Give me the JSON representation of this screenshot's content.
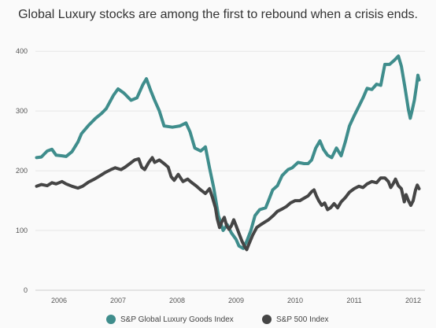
{
  "title": "Global Luxury stocks are among the first to rebound when a crisis ends.",
  "chart_data": {
    "type": "line",
    "title": "Global Luxury stocks are among the first to rebound when a crisis ends.",
    "xlabel": "",
    "ylabel": "",
    "xlim": [
      2005.6,
      2012.2
    ],
    "ylim": [
      0,
      420
    ],
    "yticks": [
      0,
      100,
      200,
      300,
      400
    ],
    "xticks": [
      {
        "value": 2006,
        "label": "2006"
      },
      {
        "value": 2007,
        "label": "2007"
      },
      {
        "value": 2008,
        "label": "2008"
      },
      {
        "value": 2009,
        "label": "2009"
      },
      {
        "value": 2010,
        "label": "2010"
      },
      {
        "value": 2011,
        "label": "2011"
      },
      {
        "value": 2012,
        "label": "2012"
      }
    ],
    "grid": "horizontal",
    "legend_position": "bottom",
    "series": [
      {
        "name": "S&P Global Luxury Goods Index",
        "color": "#3f8d8c",
        "points": [
          [
            2005.62,
            222
          ],
          [
            2005.7,
            223
          ],
          [
            2005.8,
            233
          ],
          [
            2005.88,
            236
          ],
          [
            2005.95,
            226
          ],
          [
            2006.05,
            225
          ],
          [
            2006.12,
            224
          ],
          [
            2006.22,
            232
          ],
          [
            2006.32,
            248
          ],
          [
            2006.38,
            262
          ],
          [
            2006.5,
            276
          ],
          [
            2006.62,
            288
          ],
          [
            2006.72,
            296
          ],
          [
            2006.8,
            304
          ],
          [
            2006.92,
            326
          ],
          [
            2007.0,
            337
          ],
          [
            2007.1,
            330
          ],
          [
            2007.22,
            318
          ],
          [
            2007.32,
            322
          ],
          [
            2007.42,
            344
          ],
          [
            2007.48,
            354
          ],
          [
            2007.55,
            335
          ],
          [
            2007.62,
            318
          ],
          [
            2007.7,
            300
          ],
          [
            2007.78,
            275
          ],
          [
            2007.92,
            273
          ],
          [
            2008.05,
            275
          ],
          [
            2008.15,
            280
          ],
          [
            2008.22,
            265
          ],
          [
            2008.3,
            238
          ],
          [
            2008.4,
            233
          ],
          [
            2008.48,
            240
          ],
          [
            2008.55,
            205
          ],
          [
            2008.62,
            172
          ],
          [
            2008.7,
            125
          ],
          [
            2008.78,
            100
          ],
          [
            2008.85,
            110
          ],
          [
            2008.92,
            96
          ],
          [
            2009.0,
            85
          ],
          [
            2009.05,
            74
          ],
          [
            2009.12,
            70
          ],
          [
            2009.18,
            82
          ],
          [
            2009.25,
            100
          ],
          [
            2009.32,
            125
          ],
          [
            2009.4,
            135
          ],
          [
            2009.5,
            138
          ],
          [
            2009.55,
            150
          ],
          [
            2009.62,
            168
          ],
          [
            2009.7,
            175
          ],
          [
            2009.78,
            192
          ],
          [
            2009.88,
            202
          ],
          [
            2009.95,
            205
          ],
          [
            2010.05,
            214
          ],
          [
            2010.15,
            212
          ],
          [
            2010.22,
            212
          ],
          [
            2010.28,
            218
          ],
          [
            2010.35,
            238
          ],
          [
            2010.42,
            250
          ],
          [
            2010.48,
            236
          ],
          [
            2010.55,
            226
          ],
          [
            2010.62,
            222
          ],
          [
            2010.7,
            238
          ],
          [
            2010.78,
            225
          ],
          [
            2010.85,
            248
          ],
          [
            2010.92,
            275
          ],
          [
            2011.0,
            292
          ],
          [
            2011.08,
            308
          ],
          [
            2011.15,
            322
          ],
          [
            2011.22,
            338
          ],
          [
            2011.3,
            336
          ],
          [
            2011.38,
            345
          ],
          [
            2011.45,
            343
          ],
          [
            2011.52,
            378
          ],
          [
            2011.6,
            378
          ],
          [
            2011.68,
            385
          ],
          [
            2011.75,
            392
          ],
          [
            2011.8,
            375
          ],
          [
            2011.86,
            340
          ],
          [
            2011.92,
            302
          ],
          [
            2011.95,
            288
          ],
          [
            2011.98,
            300
          ],
          [
            2012.02,
            318
          ],
          [
            2012.06,
            345
          ],
          [
            2012.08,
            360
          ],
          [
            2012.1,
            352
          ]
        ]
      },
      {
        "name": "S&P 500 Index",
        "color": "#454545",
        "points": [
          [
            2005.62,
            174
          ],
          [
            2005.7,
            177
          ],
          [
            2005.8,
            175
          ],
          [
            2005.88,
            180
          ],
          [
            2005.95,
            178
          ],
          [
            2006.05,
            182
          ],
          [
            2006.12,
            178
          ],
          [
            2006.22,
            174
          ],
          [
            2006.32,
            171
          ],
          [
            2006.4,
            174
          ],
          [
            2006.5,
            181
          ],
          [
            2006.6,
            186
          ],
          [
            2006.7,
            192
          ],
          [
            2006.78,
            197
          ],
          [
            2006.88,
            202
          ],
          [
            2006.95,
            205
          ],
          [
            2007.05,
            202
          ],
          [
            2007.12,
            206
          ],
          [
            2007.2,
            212
          ],
          [
            2007.28,
            218
          ],
          [
            2007.35,
            220
          ],
          [
            2007.4,
            206
          ],
          [
            2007.45,
            202
          ],
          [
            2007.52,
            214
          ],
          [
            2007.58,
            222
          ],
          [
            2007.62,
            214
          ],
          [
            2007.7,
            218
          ],
          [
            2007.78,
            212
          ],
          [
            2007.85,
            206
          ],
          [
            2007.9,
            190
          ],
          [
            2007.95,
            184
          ],
          [
            2008.02,
            194
          ],
          [
            2008.1,
            182
          ],
          [
            2008.18,
            186
          ],
          [
            2008.25,
            180
          ],
          [
            2008.32,
            175
          ],
          [
            2008.4,
            168
          ],
          [
            2008.48,
            162
          ],
          [
            2008.55,
            170
          ],
          [
            2008.6,
            155
          ],
          [
            2008.65,
            138
          ],
          [
            2008.68,
            120
          ],
          [
            2008.72,
            105
          ],
          [
            2008.76,
            115
          ],
          [
            2008.8,
            122
          ],
          [
            2008.84,
            108
          ],
          [
            2008.88,
            102
          ],
          [
            2008.92,
            108
          ],
          [
            2008.96,
            118
          ],
          [
            2009.0,
            108
          ],
          [
            2009.05,
            95
          ],
          [
            2009.1,
            82
          ],
          [
            2009.15,
            72
          ],
          [
            2009.18,
            68
          ],
          [
            2009.22,
            78
          ],
          [
            2009.28,
            92
          ],
          [
            2009.35,
            105
          ],
          [
            2009.42,
            110
          ],
          [
            2009.5,
            115
          ],
          [
            2009.55,
            118
          ],
          [
            2009.62,
            124
          ],
          [
            2009.7,
            132
          ],
          [
            2009.78,
            136
          ],
          [
            2009.85,
            140
          ],
          [
            2009.92,
            146
          ],
          [
            2010.0,
            150
          ],
          [
            2010.08,
            150
          ],
          [
            2010.15,
            154
          ],
          [
            2010.22,
            158
          ],
          [
            2010.28,
            165
          ],
          [
            2010.32,
            168
          ],
          [
            2010.36,
            158
          ],
          [
            2010.4,
            150
          ],
          [
            2010.45,
            142
          ],
          [
            2010.5,
            146
          ],
          [
            2010.55,
            135
          ],
          [
            2010.6,
            138
          ],
          [
            2010.66,
            145
          ],
          [
            2010.72,
            138
          ],
          [
            2010.78,
            148
          ],
          [
            2010.85,
            155
          ],
          [
            2010.92,
            164
          ],
          [
            2011.0,
            170
          ],
          [
            2011.08,
            174
          ],
          [
            2011.15,
            172
          ],
          [
            2011.22,
            178
          ],
          [
            2011.3,
            182
          ],
          [
            2011.38,
            180
          ],
          [
            2011.45,
            188
          ],
          [
            2011.52,
            188
          ],
          [
            2011.58,
            182
          ],
          [
            2011.62,
            172
          ],
          [
            2011.66,
            178
          ],
          [
            2011.7,
            186
          ],
          [
            2011.75,
            175
          ],
          [
            2011.8,
            170
          ],
          [
            2011.85,
            148
          ],
          [
            2011.88,
            160
          ],
          [
            2011.92,
            150
          ],
          [
            2011.96,
            142
          ],
          [
            2012.0,
            150
          ],
          [
            2012.04,
            168
          ],
          [
            2012.07,
            176
          ],
          [
            2012.1,
            170
          ]
        ]
      }
    ]
  },
  "legend": {
    "items": [
      {
        "label": "S&P Global Luxury Goods Index",
        "color": "#3f8d8c"
      },
      {
        "label": "S&P 500 Index",
        "color": "#454545"
      }
    ]
  }
}
